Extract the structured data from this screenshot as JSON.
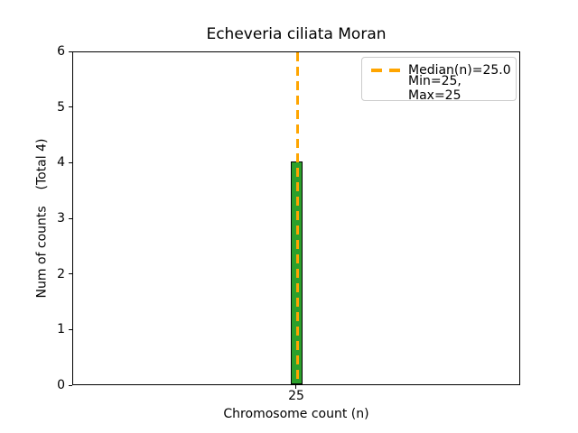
{
  "figure": {
    "title": "Echeveria ciliata Moran",
    "xlabel": "Chromosome count (n)",
    "ylabel_display": "Num of counts    (Total 4)"
  },
  "legend": {
    "entries": [
      {
        "label": "Median(n)=25.0",
        "marker": "orange-dashed-line"
      },
      {
        "label": "Min=25, Max=25",
        "marker": "none"
      }
    ],
    "position": "upper right"
  },
  "chart_data": {
    "type": "bar",
    "title": "Echeveria ciliata Moran",
    "xlabel": "Chromosome count (n)",
    "ylabel": "Num of counts",
    "ylabel_annotation": "(Total 4)",
    "total_counts": 4,
    "categories": [
      "25"
    ],
    "values": [
      4
    ],
    "ylim": [
      0,
      6
    ],
    "yticks": [
      0,
      1,
      2,
      3,
      4,
      5,
      6
    ],
    "xticks": [
      "25"
    ],
    "median_line": {
      "value": 25.0,
      "color": "#FFA500",
      "style": "dashed",
      "orientation": "vertical"
    },
    "stats": {
      "median": 25.0,
      "min": 25,
      "max": 25
    },
    "bar_color": "#2ca02c",
    "bar_edge_color": "#000000",
    "median_color": "#FFA500",
    "grid": false,
    "legend_position": "upper right"
  }
}
